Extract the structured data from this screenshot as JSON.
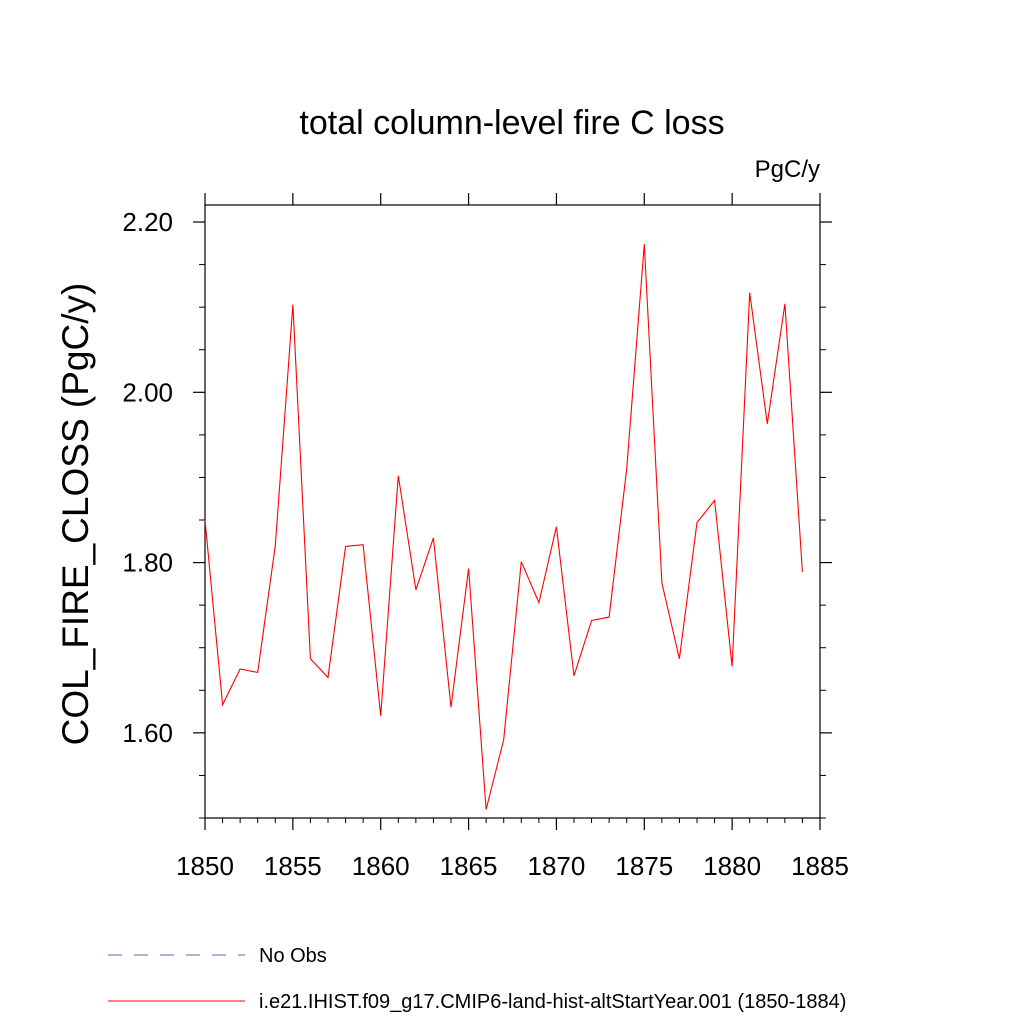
{
  "chart_data": {
    "type": "line",
    "title": "total column-level fire C loss",
    "units_label": "PgC/y",
    "ylabel": "COL_FIRE_CLOSS  (PgC/y)",
    "xlabel": "",
    "xlim": [
      1850,
      1885
    ],
    "ylim": [
      1.5,
      2.22
    ],
    "x_ticks": [
      1850,
      1855,
      1860,
      1865,
      1870,
      1875,
      1880,
      1885
    ],
    "y_ticks": [
      1.6,
      1.8,
      2.0,
      2.2
    ],
    "y_tick_labels": [
      "1.60",
      "1.80",
      "2.00",
      "2.20"
    ],
    "grid": false,
    "series": [
      {
        "name": "i.e21.IHIST.f09_g17.CMIP6-land-hist-altStartYear.001 (1850-1884)",
        "color": "#ff0000",
        "x": [
          1850,
          1851,
          1852,
          1853,
          1854,
          1855,
          1856,
          1857,
          1858,
          1859,
          1860,
          1861,
          1862,
          1863,
          1864,
          1865,
          1866,
          1867,
          1868,
          1869,
          1870,
          1871,
          1872,
          1873,
          1874,
          1875,
          1876,
          1877,
          1878,
          1879,
          1880,
          1881,
          1882,
          1883,
          1884
        ],
        "values": [
          1.85,
          1.633,
          1.675,
          1.671,
          1.82,
          2.103,
          1.687,
          1.665,
          1.819,
          1.821,
          1.62,
          1.902,
          1.768,
          1.829,
          1.63,
          1.793,
          1.51,
          1.592,
          1.801,
          1.753,
          1.842,
          1.667,
          1.732,
          1.736,
          1.91,
          2.174,
          1.776,
          1.687,
          1.847,
          1.873,
          1.678,
          2.117,
          1.963,
          2.104,
          1.789
        ]
      }
    ],
    "legend": [
      {
        "label": "No Obs",
        "color": "#6f5fc0",
        "style": "dashed"
      },
      {
        "label": "i.e21.IHIST.f09_g17.CMIP6-land-hist-altStartYear.001 (1850-1884)",
        "color": "#ff0000",
        "style": "solid"
      }
    ]
  }
}
